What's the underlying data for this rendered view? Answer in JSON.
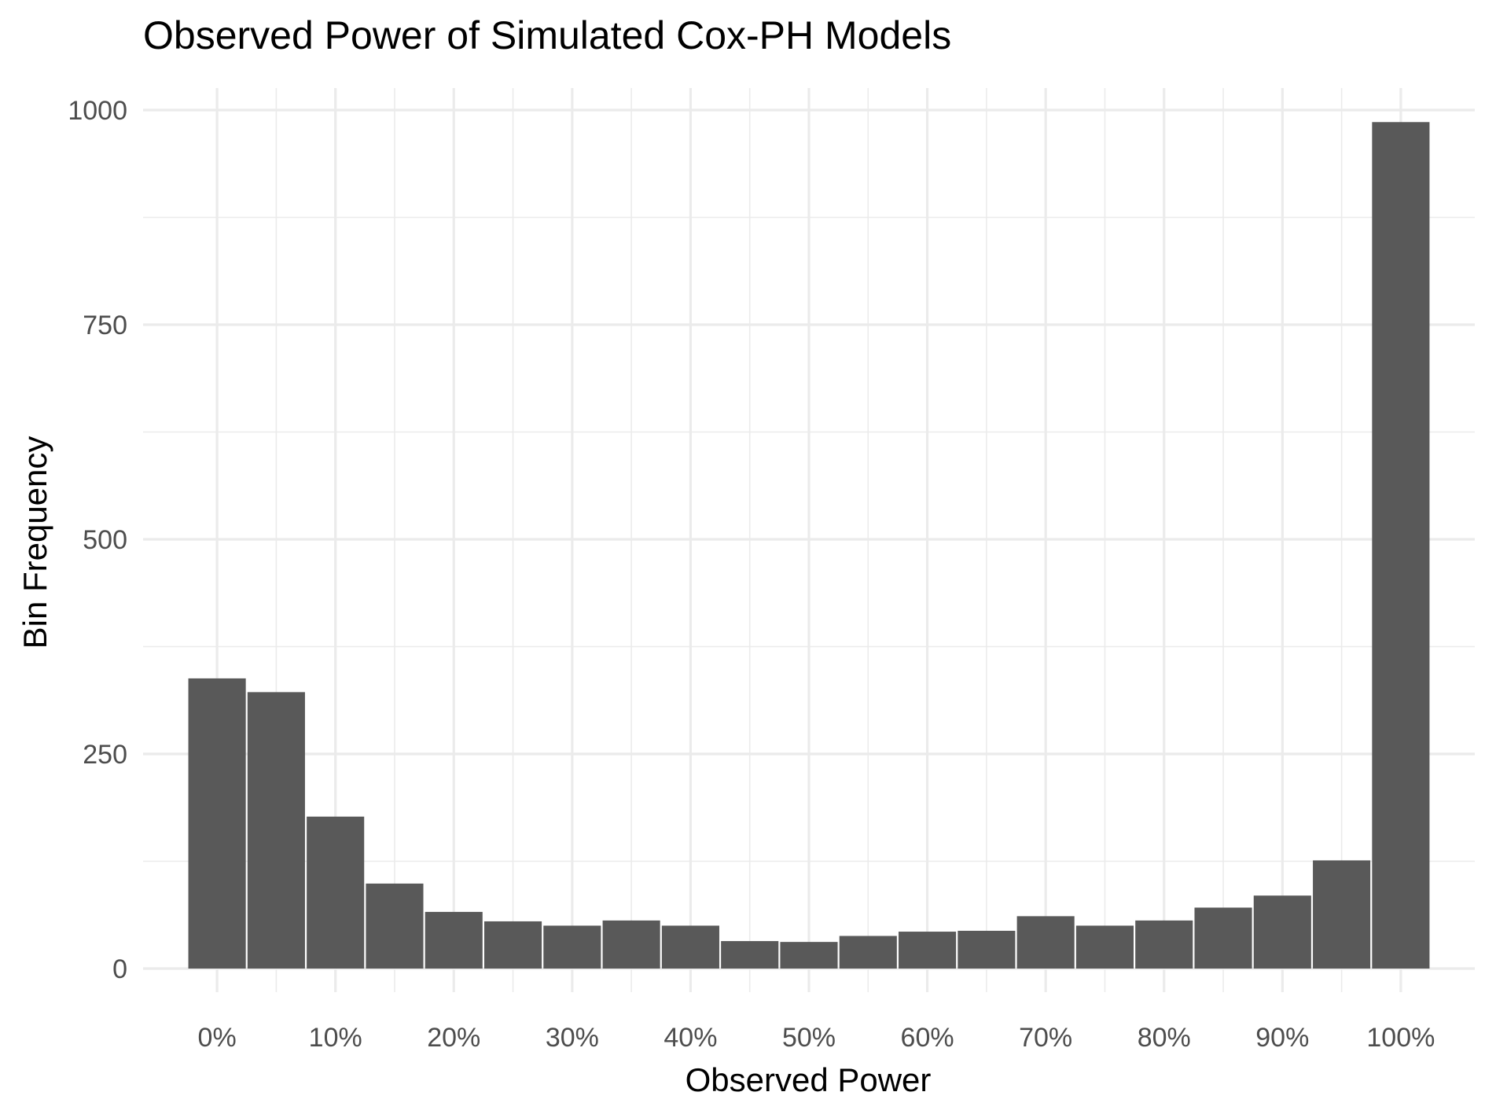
{
  "chart_data": {
    "type": "bar",
    "title": "Observed Power of Simulated Cox-PH Models",
    "xlabel": "Observed Power",
    "ylabel": "Bin Frequency",
    "xlim": [
      -0.0625,
      1.0625
    ],
    "ylim": [
      0,
      1000
    ],
    "x_ticks": [
      0,
      0.1,
      0.2,
      0.3,
      0.4,
      0.5,
      0.6,
      0.7,
      0.8,
      0.9,
      1.0
    ],
    "x_tick_labels": [
      "0%",
      "10%",
      "20%",
      "30%",
      "40%",
      "50%",
      "60%",
      "70%",
      "80%",
      "90%",
      "100%"
    ],
    "y_ticks": [
      0,
      250,
      500,
      750,
      1000
    ],
    "y_tick_labels": [
      "0",
      "250",
      "500",
      "750",
      "1000"
    ],
    "grid": true,
    "bin_width": 0.05,
    "bin_centers": [
      0,
      0.05,
      0.1,
      0.15,
      0.2,
      0.25,
      0.3,
      0.35,
      0.4,
      0.45,
      0.5,
      0.55,
      0.6,
      0.65,
      0.7,
      0.75,
      0.8,
      0.85,
      0.9,
      0.95,
      1.0
    ],
    "values": [
      338,
      322,
      177,
      99,
      66,
      55,
      50,
      56,
      50,
      32,
      31,
      38,
      43,
      44,
      61,
      50,
      56,
      71,
      85,
      126,
      986
    ],
    "colors": {
      "bar": "#595959",
      "grid": "#ebebeb",
      "tick_text": "#4d4d4d",
      "title_text": "#000000"
    }
  }
}
